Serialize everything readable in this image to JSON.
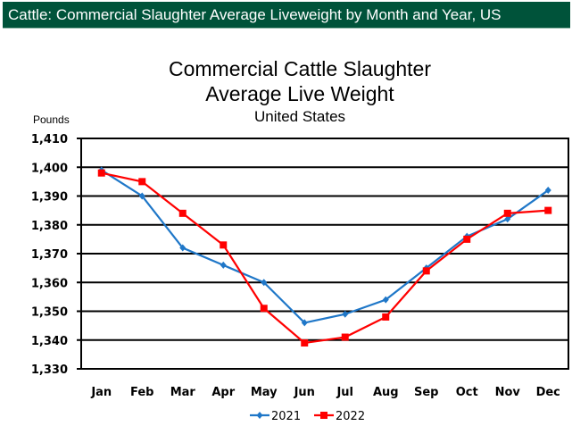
{
  "banner": {
    "title": "Cattle: Commercial Slaughter Average Liveweight by Month and Year, US"
  },
  "chart_data": {
    "type": "line",
    "title": "Commercial Cattle Slaughter",
    "title_line2": "Average Live Weight",
    "subtitle": "United States",
    "xlabel": "",
    "ylabel": "Pounds",
    "ylim": [
      1330,
      1410
    ],
    "yticks": [
      1330,
      1340,
      1350,
      1360,
      1370,
      1380,
      1390,
      1400,
      1410
    ],
    "ytick_labels": [
      "1,330",
      "1,340",
      "1,350",
      "1,360",
      "1,370",
      "1,380",
      "1,390",
      "1,400",
      "1,410"
    ],
    "grid": true,
    "legend": "bottom",
    "categories": [
      "Jan",
      "Feb",
      "Mar",
      "Apr",
      "May",
      "Jun",
      "Jul",
      "Aug",
      "Sep",
      "Oct",
      "Nov",
      "Dec"
    ],
    "series": [
      {
        "name": "2021",
        "color": "#1f77c8",
        "marker": "diamond",
        "values": [
          1399,
          1390,
          1372,
          1366,
          1360,
          1346,
          1349,
          1354,
          1365,
          1376,
          1382,
          1392
        ]
      },
      {
        "name": "2022",
        "color": "#ff0000",
        "marker": "square",
        "values": [
          1398,
          1395,
          1384,
          1373,
          1351,
          1339,
          1341,
          1348,
          1364,
          1375,
          1384,
          1385
        ]
      }
    ]
  }
}
